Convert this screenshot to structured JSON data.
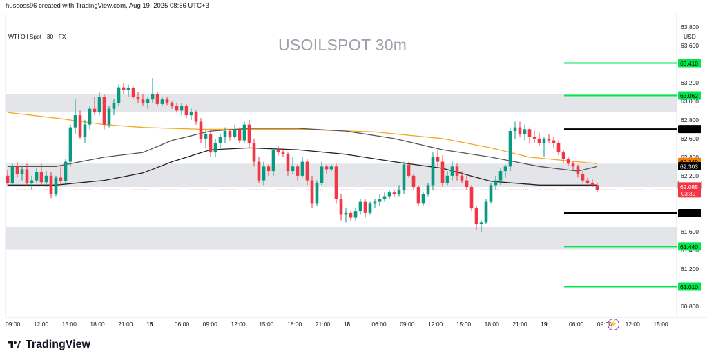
{
  "header": {
    "caption": "hussoss96 created with TradingView.com, Aug 19, 2025 08:56 UTC+3",
    "instrument": "WTI Oil Spot · 30 · FX",
    "currency": "USD"
  },
  "footer": {
    "brand": "TradingView"
  },
  "icons": {
    "alert": "lightning-icon",
    "logo": "tradingview-logo-icon"
  },
  "chart_data": {
    "type": "candlestick",
    "title": "USOILSPOT 30m",
    "ylim": [
      60.68,
      63.94
    ],
    "y_ticks": [
      "63.800",
      "63.600",
      "63.400",
      "63.200",
      "63.000",
      "62.800",
      "62.600",
      "62.400",
      "62.200",
      "62.000",
      "61.800",
      "61.600",
      "61.400",
      "61.200",
      "61.000",
      "60.800"
    ],
    "x_ticks": [
      "09:00",
      "12:00",
      "15:00",
      "18:00",
      "21:00",
      "15",
      "06:00",
      "09:00",
      "12:00",
      "15:00",
      "18:00",
      "21:00",
      "18",
      "06:00",
      "09:00",
      "12:00",
      "15:00",
      "18:00",
      "21:00",
      "19",
      "06:00",
      "09:00",
      "12:00",
      "15:00"
    ],
    "zones": [
      {
        "from": 62.88,
        "to": 63.08
      },
      {
        "from": 62.08,
        "to": 62.33
      },
      {
        "from": 61.41,
        "to": 61.65
      }
    ],
    "levels": [
      {
        "value": 63.41,
        "label": "63.410",
        "color": "#00e64d"
      },
      {
        "value": 63.062,
        "label": "63.062",
        "color": "#00e64d"
      },
      {
        "value": 62.702,
        "label": "62.702",
        "color": "#000000"
      },
      {
        "value": 61.799,
        "label": "61.799",
        "color": "#000000"
      },
      {
        "value": 61.44,
        "label": "61.440",
        "color": "#00e64d"
      },
      {
        "value": 61.01,
        "label": "61.010",
        "color": "#00e64d"
      }
    ],
    "price_tags": [
      {
        "value": 62.349,
        "label": "62.349",
        "bg": "#f57c00",
        "fg": "#000000"
      },
      {
        "value": 62.303,
        "label": "62.303",
        "bg": "#000000",
        "fg": "#ffffff"
      },
      {
        "value": 62.097,
        "label": "62.097",
        "bg": "#ffffff",
        "fg": "#000000"
      },
      {
        "value": 62.085,
        "label": "62.085",
        "bg": "#f23645",
        "fg": "#ffffff"
      }
    ],
    "countdown": "03:39",
    "moving_averages": [
      {
        "color": "#f5a623",
        "points": [
          [
            0,
            62.88
          ],
          [
            10,
            62.82
          ],
          [
            20,
            62.75
          ],
          [
            28,
            62.72
          ],
          [
            40,
            62.7
          ],
          [
            60,
            62.7
          ],
          [
            76,
            62.67
          ],
          [
            90,
            62.6
          ],
          [
            100,
            62.5
          ],
          [
            108,
            62.4
          ],
          [
            118,
            62.35
          ],
          [
            122,
            62.33
          ]
        ]
      },
      {
        "color": "#555555",
        "points": [
          [
            0,
            62.3
          ],
          [
            10,
            62.3
          ],
          [
            20,
            62.4
          ],
          [
            28,
            62.45
          ],
          [
            34,
            62.58
          ],
          [
            42,
            62.68
          ],
          [
            50,
            62.71
          ],
          [
            60,
            62.71
          ],
          [
            70,
            62.68
          ],
          [
            80,
            62.6
          ],
          [
            90,
            62.48
          ],
          [
            100,
            62.4
          ],
          [
            110,
            62.3
          ],
          [
            118,
            62.25
          ],
          [
            122,
            62.3
          ]
        ]
      },
      {
        "color": "#222222",
        "points": [
          [
            0,
            62.1
          ],
          [
            10,
            62.1
          ],
          [
            20,
            62.15
          ],
          [
            28,
            62.23
          ],
          [
            34,
            62.35
          ],
          [
            42,
            62.48
          ],
          [
            50,
            62.5
          ],
          [
            60,
            62.48
          ],
          [
            70,
            62.43
          ],
          [
            80,
            62.35
          ],
          [
            90,
            62.28
          ],
          [
            100,
            62.14
          ],
          [
            110,
            62.1
          ],
          [
            118,
            62.1
          ],
          [
            122,
            62.1
          ]
        ]
      }
    ],
    "candles": [
      [
        62.2,
        62.26,
        62.1,
        62.12
      ],
      [
        62.12,
        62.34,
        62.1,
        62.3
      ],
      [
        62.3,
        62.35,
        62.18,
        62.22
      ],
      [
        62.22,
        62.3,
        62.15,
        62.27
      ],
      [
        62.27,
        62.33,
        62.1,
        62.12
      ],
      [
        62.12,
        62.2,
        62.05,
        62.15
      ],
      [
        62.15,
        62.28,
        62.12,
        62.24
      ],
      [
        62.24,
        62.33,
        62.1,
        62.13
      ],
      [
        62.13,
        62.25,
        62.08,
        62.2
      ],
      [
        62.2,
        62.24,
        61.96,
        62.0
      ],
      [
        62.0,
        62.2,
        61.98,
        62.18
      ],
      [
        62.18,
        62.3,
        62.1,
        62.14
      ],
      [
        62.14,
        62.38,
        62.1,
        62.35
      ],
      [
        62.35,
        62.75,
        62.3,
        62.72
      ],
      [
        62.72,
        63.02,
        62.65,
        62.85
      ],
      [
        62.85,
        62.9,
        62.6,
        62.62
      ],
      [
        62.62,
        62.8,
        62.55,
        62.75
      ],
      [
        62.75,
        62.95,
        62.7,
        62.92
      ],
      [
        62.92,
        63.05,
        62.85,
        62.88
      ],
      [
        62.88,
        63.1,
        62.85,
        63.05
      ],
      [
        63.05,
        63.08,
        62.7,
        62.75
      ],
      [
        62.75,
        62.95,
        62.72,
        62.92
      ],
      [
        62.92,
        63.02,
        62.85,
        62.98
      ],
      [
        62.98,
        63.18,
        62.95,
        63.15
      ],
      [
        63.15,
        63.2,
        63.08,
        63.12
      ],
      [
        63.12,
        63.18,
        63.05,
        63.14
      ],
      [
        63.14,
        63.16,
        63.02,
        63.05
      ],
      [
        63.05,
        63.1,
        62.98,
        63.02
      ],
      [
        63.02,
        63.08,
        62.95,
        62.98
      ],
      [
        62.98,
        63.05,
        62.92,
        63.02
      ],
      [
        63.02,
        63.25,
        62.98,
        63.08
      ],
      [
        63.08,
        63.1,
        62.95,
        62.97
      ],
      [
        62.97,
        63.05,
        62.95,
        63.02
      ],
      [
        63.02,
        63.05,
        62.96,
        62.98
      ],
      [
        62.98,
        63.0,
        62.92,
        62.95
      ],
      [
        62.95,
        62.98,
        62.88,
        62.9
      ],
      [
        62.9,
        62.98,
        62.85,
        62.95
      ],
      [
        62.95,
        62.97,
        62.82,
        62.85
      ],
      [
        62.85,
        62.92,
        62.8,
        62.88
      ],
      [
        62.88,
        62.9,
        62.75,
        62.78
      ],
      [
        62.78,
        62.82,
        62.55,
        62.6
      ],
      [
        62.6,
        62.7,
        62.5,
        62.65
      ],
      [
        62.65,
        62.7,
        62.4,
        62.45
      ],
      [
        62.45,
        62.6,
        62.4,
        62.55
      ],
      [
        62.55,
        62.65,
        62.5,
        62.62
      ],
      [
        62.62,
        62.72,
        62.55,
        62.68
      ],
      [
        62.68,
        62.7,
        62.58,
        62.62
      ],
      [
        62.62,
        62.75,
        62.6,
        62.7
      ],
      [
        62.7,
        62.72,
        62.55,
        62.58
      ],
      [
        62.58,
        62.78,
        62.55,
        62.75
      ],
      [
        62.75,
        62.8,
        62.5,
        62.55
      ],
      [
        62.55,
        62.6,
        62.3,
        62.35
      ],
      [
        62.35,
        62.4,
        62.12,
        62.15
      ],
      [
        62.15,
        62.35,
        62.1,
        62.3
      ],
      [
        62.3,
        62.32,
        62.2,
        62.25
      ],
      [
        62.25,
        62.5,
        62.2,
        62.48
      ],
      [
        62.48,
        62.52,
        62.42,
        62.45
      ],
      [
        62.45,
        62.5,
        62.4,
        62.43
      ],
      [
        62.43,
        62.45,
        62.2,
        62.25
      ],
      [
        62.25,
        62.4,
        62.22,
        62.3
      ],
      [
        62.3,
        62.32,
        62.15,
        62.2
      ],
      [
        62.2,
        62.4,
        62.18,
        62.35
      ],
      [
        62.35,
        62.38,
        62.1,
        62.15
      ],
      [
        62.15,
        62.2,
        61.85,
        61.9
      ],
      [
        61.9,
        62.15,
        61.88,
        62.12
      ],
      [
        62.12,
        62.35,
        62.1,
        62.3
      ],
      [
        62.3,
        62.32,
        62.22,
        62.27
      ],
      [
        62.27,
        62.32,
        62.25,
        62.3
      ],
      [
        62.3,
        62.33,
        61.9,
        61.95
      ],
      [
        61.95,
        62.0,
        61.72,
        61.78
      ],
      [
        61.78,
        61.85,
        61.7,
        61.8
      ],
      [
        61.8,
        61.82,
        61.72,
        61.75
      ],
      [
        61.75,
        61.85,
        61.72,
        61.82
      ],
      [
        61.82,
        61.95,
        61.78,
        61.92
      ],
      [
        61.92,
        61.95,
        61.75,
        61.8
      ],
      [
        61.8,
        61.92,
        61.78,
        61.9
      ],
      [
        61.9,
        61.95,
        61.85,
        61.92
      ],
      [
        61.92,
        62.0,
        61.88,
        61.95
      ],
      [
        61.95,
        62.02,
        61.92,
        61.98
      ],
      [
        61.98,
        62.05,
        61.95,
        62.02
      ],
      [
        62.02,
        62.05,
        61.97,
        62.0
      ],
      [
        62.0,
        62.1,
        61.98,
        62.05
      ],
      [
        62.05,
        62.35,
        62.0,
        62.32
      ],
      [
        62.32,
        62.35,
        62.18,
        62.2
      ],
      [
        62.2,
        62.22,
        62.05,
        62.08
      ],
      [
        62.08,
        62.1,
        61.88,
        61.9
      ],
      [
        61.9,
        62.02,
        61.88,
        62.0
      ],
      [
        62.0,
        62.12,
        61.98,
        62.1
      ],
      [
        62.1,
        62.45,
        62.05,
        62.4
      ],
      [
        62.4,
        62.48,
        62.3,
        62.35
      ],
      [
        62.35,
        62.42,
        62.08,
        62.12
      ],
      [
        62.12,
        62.25,
        62.1,
        62.2
      ],
      [
        62.2,
        62.35,
        62.15,
        62.3
      ],
      [
        62.3,
        62.33,
        62.15,
        62.2
      ],
      [
        62.2,
        62.25,
        62.12,
        62.15
      ],
      [
        62.15,
        62.22,
        62.05,
        62.08
      ],
      [
        62.08,
        62.1,
        61.82,
        61.85
      ],
      [
        61.85,
        61.88,
        61.62,
        61.68
      ],
      [
        61.68,
        61.72,
        61.6,
        61.7
      ],
      [
        61.7,
        61.95,
        61.68,
        61.92
      ],
      [
        61.92,
        62.12,
        61.9,
        62.1
      ],
      [
        62.1,
        62.2,
        62.05,
        62.15
      ],
      [
        62.15,
        62.28,
        62.1,
        62.25
      ],
      [
        62.25,
        62.32,
        62.18,
        62.3
      ],
      [
        62.3,
        62.72,
        62.25,
        62.68
      ],
      [
        62.68,
        62.78,
        62.6,
        62.72
      ],
      [
        62.72,
        62.78,
        62.62,
        62.65
      ],
      [
        62.65,
        62.75,
        62.58,
        62.7
      ],
      [
        62.7,
        62.72,
        62.55,
        62.62
      ],
      [
        62.62,
        62.68,
        62.55,
        62.6
      ],
      [
        62.6,
        62.66,
        62.52,
        62.55
      ],
      [
        62.55,
        62.62,
        62.4,
        62.6
      ],
      [
        62.6,
        62.65,
        62.55,
        62.58
      ],
      [
        62.58,
        62.62,
        62.5,
        62.55
      ],
      [
        62.55,
        62.58,
        62.42,
        62.45
      ],
      [
        62.45,
        62.48,
        62.34,
        62.38
      ],
      [
        62.38,
        62.4,
        62.3,
        62.33
      ],
      [
        62.33,
        62.36,
        62.26,
        62.3
      ],
      [
        62.3,
        62.32,
        62.18,
        62.22
      ],
      [
        62.22,
        62.25,
        62.12,
        62.15
      ],
      [
        62.15,
        62.18,
        62.08,
        62.12
      ],
      [
        62.12,
        62.16,
        62.08,
        62.1
      ],
      [
        62.1,
        62.12,
        62.02,
        62.05
      ]
    ]
  }
}
